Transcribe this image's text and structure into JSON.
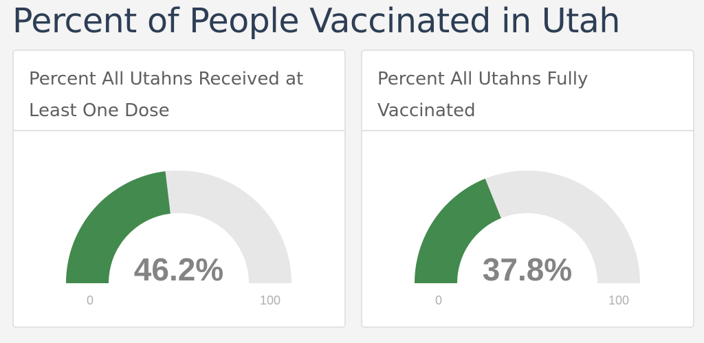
{
  "title": "Percent of People Vaccinated in Utah",
  "colors": {
    "fill": "#428a4d",
    "track": "#e8e7e8",
    "value_text": "#848484",
    "label_text": "#b0b0b0"
  },
  "chart_data": [
    {
      "type": "gauge",
      "title": "Percent All Utahns Received at Least One Dose",
      "value": 46.2,
      "value_label": "46.2%",
      "min": 0,
      "max": 100,
      "min_label": "0",
      "max_label": "100"
    },
    {
      "type": "gauge",
      "title": "Percent All Utahns Fully Vaccinated",
      "value": 37.8,
      "value_label": "37.8%",
      "min": 0,
      "max": 100,
      "min_label": "0",
      "max_label": "100"
    }
  ]
}
